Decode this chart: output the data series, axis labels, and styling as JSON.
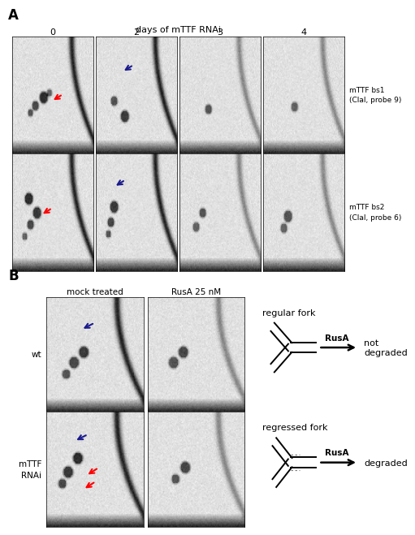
{
  "panel_A_label": "A",
  "panel_B_label": "B",
  "days_label": "days of mTTF RNAi",
  "day_values": [
    "0",
    "2",
    "3",
    "4"
  ],
  "row1_label": "mTTF bs1\n(ClaI, probe 9)",
  "row2_label": "mTTF bs2\n(ClaI, probe 6)",
  "mock_label": "mock treated",
  "rusA_label": "RusA 25 nM",
  "wt_label": "wt",
  "mttf_label": "mTTF\nRNAi",
  "regular_fork_label": "regular fork",
  "regressed_fork_label": "regressed fork",
  "rusA_arrow_label": "RusA",
  "not_degraded_label": "not\ndegraded",
  "degraded_label": "degraded"
}
